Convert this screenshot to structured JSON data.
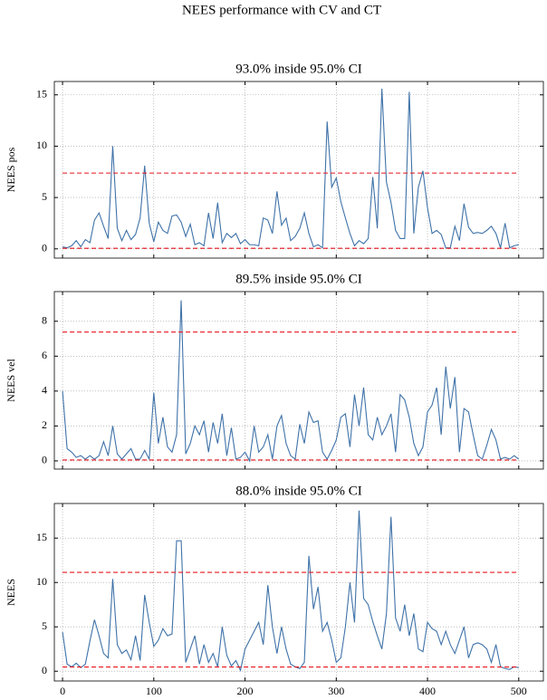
{
  "title": "NEES performance with CV and CT",
  "chart_data": [
    {
      "type": "line",
      "title": "93.0% inside 95.0% CI",
      "ylabel": "NEES pos",
      "x": [
        0,
        5,
        10,
        15,
        20,
        25,
        30,
        35,
        40,
        45,
        50,
        55,
        60,
        65,
        70,
        75,
        80,
        85,
        90,
        95,
        100,
        105,
        110,
        115,
        120,
        125,
        130,
        135,
        140,
        145,
        150,
        155,
        160,
        165,
        170,
        175,
        180,
        185,
        190,
        195,
        200,
        205,
        210,
        215,
        220,
        225,
        230,
        235,
        240,
        245,
        250,
        255,
        260,
        265,
        270,
        275,
        280,
        285,
        290,
        295,
        300,
        305,
        310,
        315,
        320,
        325,
        330,
        335,
        340,
        345,
        350,
        355,
        360,
        365,
        370,
        375,
        380,
        385,
        390,
        395,
        400,
        405,
        410,
        415,
        420,
        425,
        430,
        435,
        440,
        445,
        450,
        455,
        460,
        465,
        470,
        475,
        480,
        485,
        490,
        495,
        500
      ],
      "series": [
        {
          "color": "#3f72a8",
          "values": [
            0.2,
            0.1,
            0.3,
            0.8,
            0.2,
            0.9,
            0.6,
            2.8,
            3.5,
            2.2,
            1.0,
            10.0,
            2.0,
            0.8,
            1.8,
            0.9,
            1.4,
            3.0,
            8.1,
            2.5,
            0.7,
            2.6,
            1.8,
            1.5,
            3.2,
            3.3,
            2.6,
            1.2,
            2.4,
            0.4,
            0.6,
            0.3,
            3.5,
            1.0,
            4.5,
            0.6,
            1.5,
            1.1,
            1.5,
            0.5,
            0.9,
            0.4,
            0.4,
            0.3,
            3.0,
            2.8,
            1.5,
            5.6,
            2.3,
            3.0,
            0.8,
            1.2,
            2.0,
            3.5,
            1.5,
            0.2,
            0.4,
            0.1,
            12.4,
            6.0,
            6.9,
            4.6,
            3.0,
            1.5,
            0.3,
            0.8,
            0.5,
            1.0,
            7.0,
            2.0,
            15.6,
            6.5,
            4.5,
            1.8,
            1.0,
            1.0,
            15.3,
            1.5,
            6.0,
            7.6,
            4.0,
            1.5,
            1.8,
            1.4,
            0.1,
            0.1,
            2.2,
            0.8,
            4.4,
            2.1,
            1.5,
            1.6,
            1.5,
            1.8,
            2.2,
            1.5,
            0.1,
            2.5,
            0.1,
            0.3,
            0.4
          ]
        }
      ],
      "hlines": [
        {
          "value": 0.05,
          "color": "#e8141c"
        },
        {
          "value": 7.38,
          "color": "#e8141c"
        }
      ],
      "xlim": [
        -9,
        527
      ],
      "ylim": [
        -0.9,
        16.3
      ],
      "yticks": [
        0,
        5,
        10,
        15
      ],
      "xticks": [
        0,
        100,
        200,
        300,
        400,
        500
      ],
      "xtick_labels": false,
      "grid": true
    },
    {
      "type": "line",
      "title": "89.5% inside 95.0% CI",
      "ylabel": "NEES vel",
      "x": [
        0,
        5,
        10,
        15,
        20,
        25,
        30,
        35,
        40,
        45,
        50,
        55,
        60,
        65,
        70,
        75,
        80,
        85,
        90,
        95,
        100,
        105,
        110,
        115,
        120,
        125,
        130,
        135,
        140,
        145,
        150,
        155,
        160,
        165,
        170,
        175,
        180,
        185,
        190,
        195,
        200,
        205,
        210,
        215,
        220,
        225,
        230,
        235,
        240,
        245,
        250,
        255,
        260,
        265,
        270,
        275,
        280,
        285,
        290,
        295,
        300,
        305,
        310,
        315,
        320,
        325,
        330,
        335,
        340,
        345,
        350,
        355,
        360,
        365,
        370,
        375,
        380,
        385,
        390,
        395,
        400,
        405,
        410,
        415,
        420,
        425,
        430,
        435,
        440,
        445,
        450,
        455,
        460,
        465,
        470,
        475,
        480,
        485,
        490,
        495,
        500
      ],
      "series": [
        {
          "color": "#3f72a8",
          "values": [
            4.0,
            0.7,
            0.5,
            0.2,
            0.3,
            0.1,
            0.3,
            0.1,
            0.3,
            1.1,
            0.3,
            2.0,
            0.4,
            0.1,
            0.4,
            0.7,
            0.1,
            0.1,
            0.6,
            0.1,
            3.9,
            1.0,
            2.5,
            0.8,
            0.5,
            1.5,
            9.2,
            0.4,
            1.0,
            2.0,
            1.5,
            2.3,
            0.5,
            2.2,
            1.0,
            2.7,
            0.3,
            1.9,
            0.1,
            0.2,
            0.5,
            0.0,
            2.0,
            0.5,
            0.8,
            1.5,
            0.1,
            2.0,
            2.6,
            1.0,
            0.3,
            0.1,
            2.1,
            1.0,
            2.8,
            2.2,
            2.3,
            0.5,
            0.1,
            0.6,
            1.2,
            2.5,
            2.7,
            0.8,
            3.8,
            2.0,
            4.2,
            1.5,
            1.2,
            2.5,
            1.5,
            2.0,
            2.7,
            0.5,
            3.8,
            3.5,
            2.5,
            1.0,
            0.3,
            0.8,
            2.8,
            3.2,
            4.2,
            1.5,
            5.4,
            3.0,
            4.8,
            0.5,
            3.0,
            2.8,
            1.5,
            0.3,
            0.1,
            0.9,
            1.8,
            1.2,
            0.1,
            0.2,
            0.1,
            0.3,
            0.1
          ]
        }
      ],
      "hlines": [
        {
          "value": 0.05,
          "color": "#e8141c"
        },
        {
          "value": 7.38,
          "color": "#e8141c"
        }
      ],
      "xlim": [
        -9,
        527
      ],
      "ylim": [
        -0.47,
        9.7
      ],
      "yticks": [
        0,
        2,
        4,
        6,
        8
      ],
      "xticks": [
        0,
        100,
        200,
        300,
        400,
        500
      ],
      "xtick_labels": false,
      "grid": true
    },
    {
      "type": "line",
      "title": "88.0% inside 95.0% CI",
      "ylabel": "NEES",
      "x": [
        0,
        5,
        10,
        15,
        20,
        25,
        30,
        35,
        40,
        45,
        50,
        55,
        60,
        65,
        70,
        75,
        80,
        85,
        90,
        95,
        100,
        105,
        110,
        115,
        120,
        125,
        130,
        135,
        140,
        145,
        150,
        155,
        160,
        165,
        170,
        175,
        180,
        185,
        190,
        195,
        200,
        205,
        210,
        215,
        220,
        225,
        230,
        235,
        240,
        245,
        250,
        255,
        260,
        265,
        270,
        275,
        280,
        285,
        290,
        295,
        300,
        305,
        310,
        315,
        320,
        325,
        330,
        335,
        340,
        345,
        350,
        355,
        360,
        365,
        370,
        375,
        380,
        385,
        390,
        395,
        400,
        405,
        410,
        415,
        420,
        425,
        430,
        435,
        440,
        445,
        450,
        455,
        460,
        465,
        470,
        475,
        480,
        485,
        490,
        495,
        500
      ],
      "series": [
        {
          "color": "#3f72a8",
          "values": [
            4.4,
            0.8,
            0.5,
            0.9,
            0.4,
            0.8,
            3.4,
            5.8,
            4.0,
            2.0,
            1.5,
            10.4,
            3.0,
            2.0,
            2.4,
            1.3,
            4.0,
            1.2,
            8.6,
            5.5,
            2.8,
            3.5,
            4.8,
            4.0,
            4.2,
            14.7,
            14.7,
            1.0,
            2.5,
            4.0,
            0.8,
            3.0,
            1.0,
            2.0,
            0.5,
            5.0,
            1.8,
            0.6,
            1.2,
            0.1,
            2.5,
            3.5,
            4.5,
            5.5,
            3.0,
            9.7,
            5.0,
            2.0,
            5.0,
            2.5,
            0.8,
            0.5,
            0.3,
            1.0,
            13.0,
            7.0,
            9.5,
            4.5,
            5.5,
            3.5,
            1.0,
            1.5,
            5.0,
            10.0,
            5.5,
            18.1,
            8.2,
            7.5,
            5.6,
            4.0,
            2.5,
            6.5,
            17.4,
            6.0,
            4.5,
            7.5,
            4.0,
            6.5,
            2.5,
            2.2,
            5.5,
            4.8,
            4.5,
            3.0,
            4.5,
            3.0,
            2.0,
            3.5,
            5.0,
            1.5,
            3.0,
            3.2,
            3.0,
            2.5,
            1.0,
            3.0,
            0.5,
            0.3,
            0.2,
            0.5,
            0.4
          ]
        }
      ],
      "hlines": [
        {
          "value": 0.48,
          "color": "#e8141c"
        },
        {
          "value": 11.14,
          "color": "#e8141c"
        }
      ],
      "xlim": [
        -9,
        527
      ],
      "ylim": [
        -1.1,
        18.9
      ],
      "yticks": [
        0,
        5,
        10,
        15
      ],
      "xticks": [
        0,
        100,
        200,
        300,
        400,
        500
      ],
      "xtick_labels": true,
      "grid": true
    }
  ]
}
